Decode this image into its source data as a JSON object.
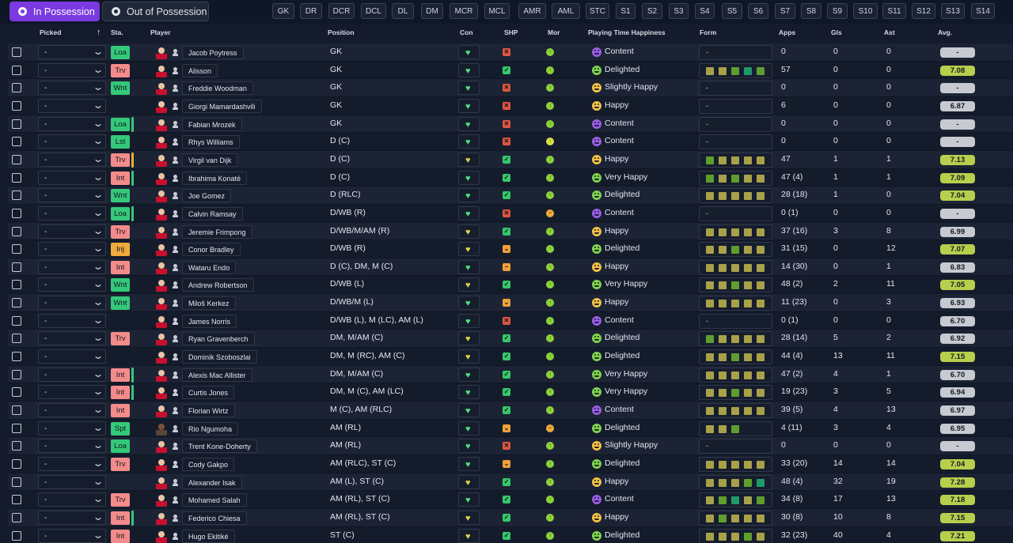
{
  "tabs": {
    "in_possession": "In Possession",
    "out_of_possession": "Out of Possession"
  },
  "position_filters": [
    "GK",
    "DR",
    "DCR",
    "DCL",
    "DL",
    "DM",
    "MCR",
    "MCL",
    "AMR",
    "AML",
    "STC",
    "S1",
    "S2",
    "S3",
    "S4",
    "S5",
    "S6",
    "S7",
    "S8",
    "S9",
    "S10",
    "S11",
    "S12",
    "S13",
    "S14"
  ],
  "columns": {
    "picked": "Picked",
    "sta": "Sta.",
    "player": "Player",
    "position": "Position",
    "con": "Con",
    "shp": "SHP",
    "mor": "Mor",
    "pth": "Playing Time Happiness",
    "form": "Form",
    "apps": "Apps",
    "gls": "Gls",
    "ast": "Ast",
    "avg": "Avg."
  },
  "colors": {
    "accent": "#7a3ae0",
    "sta_green": "#34c97a",
    "sta_red": "#f38b8b",
    "sta_orange": "#f0a93c",
    "avg_green": "#b7cf4c",
    "avg_grey": "#c7cad1",
    "form_olive": "#a8a14a",
    "form_green": "#5f9e2e",
    "form_teal": "#1f9a6a"
  },
  "players": [
    {
      "picked": "-",
      "sta": "Loa",
      "sta_color": "green",
      "bar": "",
      "name": "Jacob Poytress",
      "position": "GK",
      "con": "green",
      "shp": "no",
      "mor": "green",
      "pth_icon": "purple",
      "pth": "Content",
      "form": "-",
      "apps": "0",
      "gls": "0",
      "ast": "0",
      "avg": "-",
      "avg_color": "grey"
    },
    {
      "picked": "-",
      "sta": "Trv",
      "sta_color": "red",
      "bar": "",
      "name": "Alisson",
      "position": "GK",
      "con": "green",
      "shp": "yes",
      "mor": "green",
      "pth_icon": "green",
      "pth": "Delighted",
      "form": [
        "o",
        "o",
        "g",
        "t",
        "g"
      ],
      "apps": "57",
      "gls": "0",
      "ast": "0",
      "avg": "7.08",
      "avg_color": "green"
    },
    {
      "picked": "-",
      "sta": "Wnt",
      "sta_color": "green",
      "bar": "",
      "name": "Freddie Woodman",
      "position": "GK",
      "con": "green",
      "shp": "no",
      "mor": "green",
      "pth_icon": "orange",
      "pth": "Slightly Happy",
      "form": "-",
      "apps": "0",
      "gls": "0",
      "ast": "0",
      "avg": "-",
      "avg_color": "grey"
    },
    {
      "picked": "-",
      "sta": "",
      "sta_color": "",
      "bar": "",
      "name": "Giorgi Mamardashvili",
      "position": "GK",
      "con": "green",
      "shp": "no",
      "mor": "green",
      "pth_icon": "orange",
      "pth": "Happy",
      "form": "-",
      "apps": "6",
      "gls": "0",
      "ast": "0",
      "avg": "6.87",
      "avg_color": "grey"
    },
    {
      "picked": "-",
      "sta": "Loa",
      "sta_color": "green",
      "bar": "green",
      "name": "Fabian Mrozek",
      "position": "GK",
      "con": "green",
      "shp": "no",
      "mor": "green",
      "pth_icon": "purple",
      "pth": "Content",
      "form": "-",
      "apps": "0",
      "gls": "0",
      "ast": "0",
      "avg": "-",
      "avg_color": "grey"
    },
    {
      "picked": "-",
      "sta": "Lst",
      "sta_color": "green",
      "bar": "",
      "name": "Rhys Williams",
      "position": "D (C)",
      "con": "green",
      "shp": "no",
      "mor": "yellow",
      "pth_icon": "purple",
      "pth": "Content",
      "form": "-",
      "apps": "0",
      "gls": "0",
      "ast": "0",
      "avg": "-",
      "avg_color": "grey"
    },
    {
      "picked": "-",
      "sta": "Trv",
      "sta_color": "red",
      "bar": "orange",
      "name": "Virgil van Dijk",
      "position": "D (C)",
      "con": "yellow",
      "shp": "yes",
      "mor": "green",
      "pth_icon": "orange",
      "pth": "Happy",
      "form": [
        "g",
        "o",
        "o",
        "o",
        "o"
      ],
      "apps": "47",
      "gls": "1",
      "ast": "1",
      "avg": "7.13",
      "avg_color": "green"
    },
    {
      "picked": "-",
      "sta": "Int",
      "sta_color": "red",
      "bar": "green",
      "name": "Ibrahima Konaté",
      "position": "D (C)",
      "con": "green",
      "shp": "yes",
      "mor": "green",
      "pth_icon": "green",
      "pth": "Very Happy",
      "form": [
        "g",
        "o",
        "g",
        "o",
        "o"
      ],
      "apps": "47 (4)",
      "gls": "1",
      "ast": "1",
      "avg": "7.09",
      "avg_color": "green"
    },
    {
      "picked": "-",
      "sta": "Wnt",
      "sta_color": "green",
      "bar": "",
      "name": "Joe Gomez",
      "position": "D (RLC)",
      "con": "green",
      "shp": "yes",
      "mor": "green",
      "pth_icon": "green",
      "pth": "Delighted",
      "form": [
        "o",
        "o",
        "o",
        "o",
        "o"
      ],
      "apps": "28 (18)",
      "gls": "1",
      "ast": "0",
      "avg": "7.04",
      "avg_color": "green"
    },
    {
      "picked": "-",
      "sta": "Loa",
      "sta_color": "green",
      "bar": "green",
      "name": "Calvin Ramsay",
      "position": "D/WB (R)",
      "con": "green",
      "shp": "no",
      "mor": "orange",
      "pth_icon": "purple",
      "pth": "Content",
      "form": "-",
      "apps": "0 (1)",
      "gls": "0",
      "ast": "0",
      "avg": "-",
      "avg_color": "grey"
    },
    {
      "picked": "-",
      "sta": "Trv",
      "sta_color": "red",
      "bar": "",
      "name": "Jeremie Frimpong",
      "position": "D/WB/M/AM (R)",
      "con": "yellow",
      "shp": "yes",
      "mor": "green",
      "pth_icon": "orange",
      "pth": "Happy",
      "form": [
        "o",
        "o",
        "o",
        "o",
        "o"
      ],
      "apps": "37 (16)",
      "gls": "3",
      "ast": "8",
      "avg": "6.99",
      "avg_color": "grey"
    },
    {
      "picked": "-",
      "sta": "Inj",
      "sta_color": "orange",
      "bar": "",
      "name": "Conor Bradley",
      "position": "D/WB (R)",
      "con": "yellow",
      "shp": "partial",
      "mor": "green",
      "pth_icon": "green",
      "pth": "Delighted",
      "form": [
        "o",
        "o",
        "g",
        "o",
        "o"
      ],
      "apps": "31 (15)",
      "gls": "0",
      "ast": "12",
      "avg": "7.07",
      "avg_color": "green"
    },
    {
      "picked": "-",
      "sta": "Int",
      "sta_color": "red",
      "bar": "",
      "name": "Wataru Endo",
      "position": "D (C), DM, M (C)",
      "con": "green",
      "shp": "dash",
      "mor": "green",
      "pth_icon": "orange",
      "pth": "Happy",
      "form": [
        "o",
        "o",
        "o",
        "o",
        "o"
      ],
      "apps": "14 (30)",
      "gls": "0",
      "ast": "1",
      "avg": "6.83",
      "avg_color": "grey"
    },
    {
      "picked": "-",
      "sta": "Wnt",
      "sta_color": "green",
      "bar": "",
      "name": "Andrew Robertson",
      "position": "D/WB (L)",
      "con": "yellow",
      "shp": "yes",
      "mor": "green",
      "pth_icon": "green",
      "pth": "Very Happy",
      "form": [
        "o",
        "o",
        "g",
        "o",
        "o"
      ],
      "apps": "48 (2)",
      "gls": "2",
      "ast": "11",
      "avg": "7.05",
      "avg_color": "green"
    },
    {
      "picked": "-",
      "sta": "Wnt",
      "sta_color": "green",
      "bar": "",
      "name": "Miloš Kerkez",
      "position": "D/WB/M (L)",
      "con": "green",
      "shp": "partial",
      "mor": "green",
      "pth_icon": "orange",
      "pth": "Happy",
      "form": [
        "o",
        "o",
        "o",
        "o",
        "o"
      ],
      "apps": "11 (23)",
      "gls": "0",
      "ast": "3",
      "avg": "6.93",
      "avg_color": "grey"
    },
    {
      "picked": "-",
      "sta": "",
      "sta_color": "",
      "bar": "",
      "name": "James Norris",
      "position": "D/WB (L), M (LC), AM (L)",
      "con": "green",
      "shp": "no",
      "mor": "green",
      "pth_icon": "purple",
      "pth": "Content",
      "form": "-",
      "apps": "0 (1)",
      "gls": "0",
      "ast": "0",
      "avg": "6.70",
      "avg_color": "grey"
    },
    {
      "picked": "-",
      "sta": "Trv",
      "sta_color": "red",
      "bar": "",
      "name": "Ryan Gravenberch",
      "position": "DM, M/AM (C)",
      "con": "yellow",
      "shp": "yes",
      "mor": "green",
      "pth_icon": "green",
      "pth": "Delighted",
      "form": [
        "g",
        "o",
        "o",
        "o",
        "o"
      ],
      "apps": "28 (14)",
      "gls": "5",
      "ast": "2",
      "avg": "6.92",
      "avg_color": "grey"
    },
    {
      "picked": "-",
      "sta": "",
      "sta_color": "",
      "bar": "",
      "name": "Dominik Szoboszlai",
      "position": "DM, M (RC), AM (C)",
      "con": "yellow",
      "shp": "yes",
      "mor": "green",
      "pth_icon": "green",
      "pth": "Delighted",
      "form": [
        "o",
        "o",
        "g",
        "o",
        "o"
      ],
      "apps": "44 (4)",
      "gls": "13",
      "ast": "11",
      "avg": "7.15",
      "avg_color": "green"
    },
    {
      "picked": "-",
      "sta": "Int",
      "sta_color": "red",
      "bar": "green",
      "name": "Alexis Mac Allister",
      "position": "DM, M/AM (C)",
      "con": "green",
      "shp": "yes",
      "mor": "green",
      "pth_icon": "green",
      "pth": "Very Happy",
      "form": [
        "o",
        "o",
        "o",
        "o",
        "o"
      ],
      "apps": "47 (2)",
      "gls": "4",
      "ast": "1",
      "avg": "6.70",
      "avg_color": "grey"
    },
    {
      "picked": "-",
      "sta": "Int",
      "sta_color": "red",
      "bar": "green",
      "name": "Curtis Jones",
      "position": "DM, M (C), AM (LC)",
      "con": "green",
      "shp": "yes",
      "mor": "green",
      "pth_icon": "green",
      "pth": "Very Happy",
      "form": [
        "o",
        "o",
        "g",
        "o",
        "o"
      ],
      "apps": "19 (23)",
      "gls": "3",
      "ast": "5",
      "avg": "6.94",
      "avg_color": "grey"
    },
    {
      "picked": "-",
      "sta": "Int",
      "sta_color": "red",
      "bar": "",
      "name": "Florian Wirtz",
      "position": "M (C), AM (RLC)",
      "con": "green",
      "shp": "yes",
      "mor": "green",
      "pth_icon": "purple",
      "pth": "Content",
      "form": [
        "o",
        "o",
        "o",
        "o",
        "o"
      ],
      "apps": "39 (5)",
      "gls": "4",
      "ast": "13",
      "avg": "6.97",
      "avg_color": "grey"
    },
    {
      "picked": "-",
      "sta": "Spt",
      "sta_color": "green",
      "bar": "",
      "name": "Rio Ngumoha",
      "position": "AM (RL)",
      "con": "green",
      "shp": "partial",
      "mor": "orange",
      "pth_icon": "green",
      "pth": "Delighted",
      "form": [
        "o",
        "o",
        "g"
      ],
      "apps": "4 (11)",
      "gls": "3",
      "ast": "4",
      "avg": "6.95",
      "avg_color": "grey"
    },
    {
      "picked": "-",
      "sta": "Loa",
      "sta_color": "green",
      "bar": "",
      "name": "Trent Kone-Doherty",
      "position": "AM (RL)",
      "con": "green",
      "shp": "no",
      "mor": "green",
      "pth_icon": "orange",
      "pth": "Slightly Happy",
      "form": "-",
      "apps": "0",
      "gls": "0",
      "ast": "0",
      "avg": "-",
      "avg_color": "grey"
    },
    {
      "picked": "-",
      "sta": "Trv",
      "sta_color": "red",
      "bar": "",
      "name": "Cody Gakpo",
      "position": "AM (RLC), ST (C)",
      "con": "green",
      "shp": "partial",
      "mor": "green",
      "pth_icon": "green",
      "pth": "Delighted",
      "form": [
        "o",
        "o",
        "o",
        "o",
        "o"
      ],
      "apps": "33 (20)",
      "gls": "14",
      "ast": "14",
      "avg": "7.04",
      "avg_color": "green"
    },
    {
      "picked": "-",
      "sta": "",
      "sta_color": "",
      "bar": "",
      "name": "Alexander Isak",
      "position": "AM (L), ST (C)",
      "con": "yellow",
      "shp": "yes",
      "mor": "green",
      "pth_icon": "orange",
      "pth": "Happy",
      "form": [
        "o",
        "o",
        "o",
        "g",
        "t"
      ],
      "apps": "48 (4)",
      "gls": "32",
      "ast": "19",
      "avg": "7.28",
      "avg_color": "green"
    },
    {
      "picked": "-",
      "sta": "Trv",
      "sta_color": "red",
      "bar": "",
      "name": "Mohamed Salah",
      "position": "AM (RL), ST (C)",
      "con": "green",
      "shp": "yes",
      "mor": "green",
      "pth_icon": "purple",
      "pth": "Content",
      "form": [
        "o",
        "g",
        "t",
        "o",
        "g"
      ],
      "apps": "34 (8)",
      "gls": "17",
      "ast": "13",
      "avg": "7.18",
      "avg_color": "green"
    },
    {
      "picked": "-",
      "sta": "Int",
      "sta_color": "red",
      "bar": "green",
      "name": "Federico Chiesa",
      "position": "AM (RL), ST (C)",
      "con": "yellow",
      "shp": "yes",
      "mor": "green",
      "pth_icon": "orange",
      "pth": "Happy",
      "form": [
        "o",
        "g",
        "o",
        "o",
        "o"
      ],
      "apps": "30 (8)",
      "gls": "10",
      "ast": "8",
      "avg": "7.15",
      "avg_color": "green"
    },
    {
      "picked": "-",
      "sta": "Int",
      "sta_color": "red",
      "bar": "",
      "name": "Hugo Ekitiké",
      "position": "ST (C)",
      "con": "yellow",
      "shp": "yes",
      "mor": "green",
      "pth_icon": "green",
      "pth": "Delighted",
      "form": [
        "o",
        "o",
        "o",
        "g",
        "o"
      ],
      "apps": "32 (23)",
      "gls": "40",
      "ast": "4",
      "avg": "7.21",
      "avg_color": "green"
    }
  ]
}
